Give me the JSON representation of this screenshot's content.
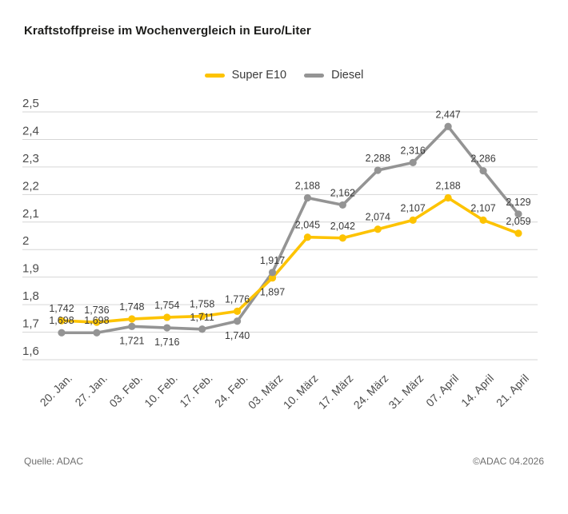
{
  "title": "Kraftstoffpreise im Wochenvergleich in Euro/Liter",
  "legend": [
    {
      "label": "Super E10",
      "color": "#fdc300"
    },
    {
      "label": "Diesel",
      "color": "#949494"
    }
  ],
  "footer": {
    "source": "Quelle: ADAC",
    "copyright": "©ADAC 04.2026"
  },
  "colors": {
    "grid": "#d6d6d6",
    "tick_text": "#4c4c4c",
    "data_label_text": "#3a3a3a"
  },
  "chart_data": {
    "type": "line",
    "title": "Kraftstoffpreise im Wochenvergleich in Euro/Liter",
    "xlabel": "",
    "ylabel": "Euro/Liter",
    "ylim": [
      1.6,
      2.5
    ],
    "ytick_step": 0.1,
    "grid": true,
    "legend_position": "top-center",
    "yticks": [
      {
        "value": 2.5,
        "label": "2,5"
      },
      {
        "value": 2.4,
        "label": "2,4"
      },
      {
        "value": 2.3,
        "label": "2,3"
      },
      {
        "value": 2.2,
        "label": "2,2"
      },
      {
        "value": 2.1,
        "label": "2,1"
      },
      {
        "value": 2.0,
        "label": "2"
      },
      {
        "value": 1.9,
        "label": "1,9"
      },
      {
        "value": 1.8,
        "label": "1,8"
      },
      {
        "value": 1.7,
        "label": "1,7"
      },
      {
        "value": 1.6,
        "label": "1,6"
      }
    ],
    "categories": [
      "20. Jan.",
      "27. Jan.",
      "03. Feb.",
      "10. Feb.",
      "17. Feb.",
      "24. Feb.",
      "03. März",
      "10. März",
      "17. März",
      "24. März",
      "31. März",
      "07. April",
      "14. April",
      "21. April"
    ],
    "series": [
      {
        "name": "Super E10",
        "color": "#fdc300",
        "values": [
          1.742,
          1.736,
          1.748,
          1.754,
          1.758,
          1.776,
          1.897,
          2.045,
          2.042,
          2.074,
          2.107,
          2.188,
          2.107,
          2.059
        ],
        "labels": [
          "1,742",
          "1,736",
          "1,748",
          "1,754",
          "1,758",
          "1,776",
          "1,897",
          "2,045",
          "2,042",
          "2,074",
          "2,107",
          "2,188",
          "2,107",
          "2,059"
        ],
        "label_pos": [
          "above",
          "above",
          "above",
          "above",
          "above",
          "above",
          "below",
          "above",
          "above",
          "above",
          "above",
          "above",
          "above",
          "above"
        ]
      },
      {
        "name": "Diesel",
        "color": "#949494",
        "values": [
          1.698,
          1.698,
          1.721,
          1.716,
          1.711,
          1.74,
          1.917,
          2.188,
          2.162,
          2.288,
          2.316,
          2.447,
          2.286,
          2.129
        ],
        "labels": [
          "1,698",
          "1,698",
          "1,721",
          "1,716",
          "1,711",
          "1,740",
          "1,917",
          "2,188",
          "2,162",
          "2,288",
          "2,316",
          "2,447",
          "2,286",
          "2,129"
        ],
        "label_pos": [
          "above",
          "above",
          "below",
          "below",
          "above",
          "below",
          "above",
          "above",
          "above",
          "above",
          "above",
          "above",
          "above",
          "above"
        ]
      }
    ]
  }
}
